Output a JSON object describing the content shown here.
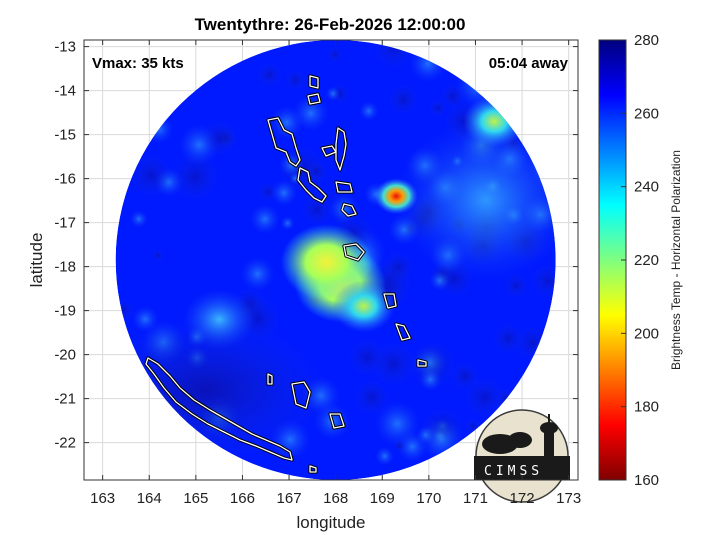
{
  "chart_data": {
    "type": "heatmap",
    "title": "Twentythre: 26-Feb-2026 12:00:00",
    "xlabel": "longitude",
    "ylabel": "latitude",
    "xlim": [
      162.6,
      173.2
    ],
    "ylim": [
      -22.85,
      -12.85
    ],
    "x_ticks": [
      163,
      164,
      165,
      166,
      167,
      168,
      169,
      170,
      171,
      172,
      173
    ],
    "y_ticks": [
      -13,
      -14,
      -15,
      -16,
      -17,
      -18,
      -19,
      -20,
      -21,
      -22
    ],
    "grid": true,
    "annotations": {
      "vmax": "Vmax: 35 kts",
      "away": "05:04 away"
    },
    "colorbar": {
      "label": "Brightness Temp - Horizontal Polarization",
      "range": [
        160,
        280
      ],
      "ticks": [
        280,
        260,
        240,
        220,
        200,
        180,
        160
      ],
      "colormap": "jet"
    },
    "swath": {
      "center": [
        168.0,
        -17.85
      ],
      "radius_deg": 5.0,
      "background_value": 262
    },
    "features": [
      {
        "lon": 168.1,
        "lat": -18.4,
        "value": 212
      },
      {
        "lon": 167.8,
        "lat": -17.9,
        "value": 205
      },
      {
        "lon": 169.3,
        "lat": -16.4,
        "value": 182
      },
      {
        "lon": 171.4,
        "lat": -14.7,
        "value": 228
      },
      {
        "lon": 168.6,
        "lat": -18.9,
        "value": 228
      },
      {
        "lon": 165.5,
        "lat": -19.2,
        "value": 248
      }
    ],
    "logo": "CIMSS"
  }
}
